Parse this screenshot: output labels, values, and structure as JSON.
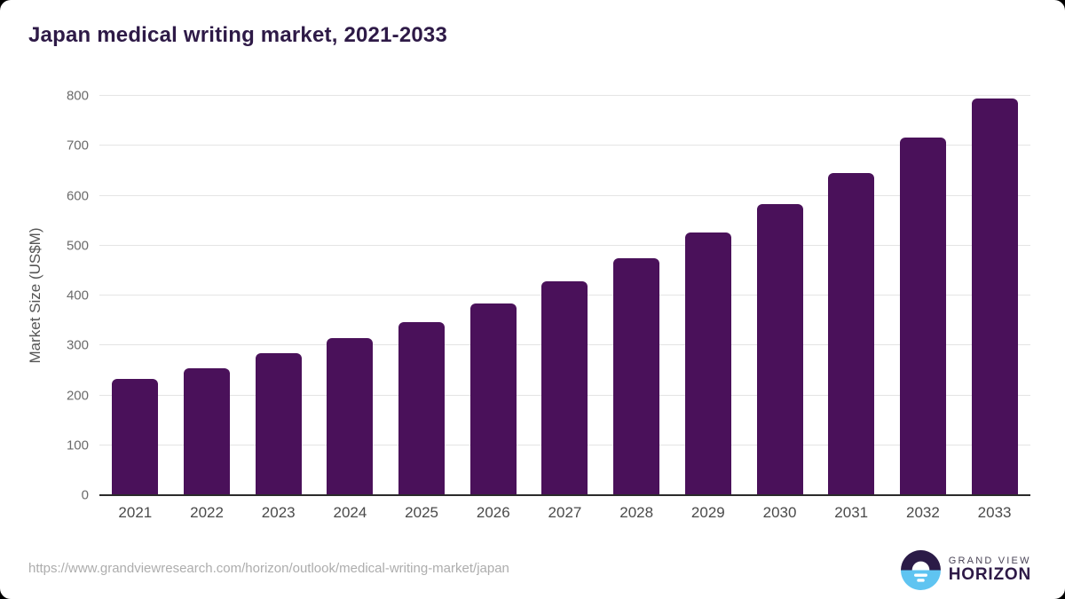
{
  "title": "Japan medical writing market, 2021-2033",
  "source_url": "https://www.grandviewresearch.com/horizon/outlook/medical-writing-market/japan",
  "branding": {
    "line1": "GRAND VIEW",
    "line2": "HORIZON",
    "mark_top_color": "#2B1B47",
    "mark_bottom_color": "#5FC4F1"
  },
  "colors": {
    "bar": "#4A115A",
    "title": "#2E1A47",
    "gridline": "#e4e4e4",
    "axis_line": "#2b2b2b",
    "tick_label": "#6b6b6b",
    "x_label": "#4a4a4a",
    "background": "#ffffff"
  },
  "chart_data": {
    "type": "bar",
    "title": "Japan medical writing market, 2021-2033",
    "xlabel": "",
    "ylabel": "Market Size (US$M)",
    "categories": [
      "2021",
      "2022",
      "2023",
      "2024",
      "2025",
      "2026",
      "2027",
      "2028",
      "2029",
      "2030",
      "2031",
      "2032",
      "2033"
    ],
    "values": [
      233,
      255,
      284,
      315,
      347,
      384,
      428,
      474,
      526,
      584,
      645,
      716,
      794
    ],
    "ylim": [
      0,
      800
    ],
    "yticks": [
      0,
      100,
      200,
      300,
      400,
      500,
      600,
      700,
      800
    ],
    "grid": true,
    "legend": false
  }
}
